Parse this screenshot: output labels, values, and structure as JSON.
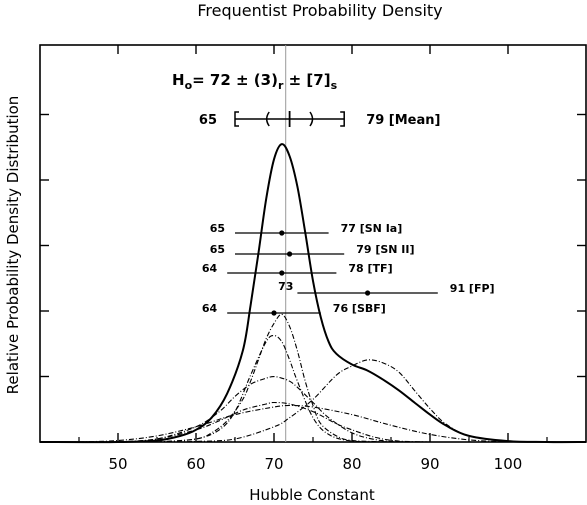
{
  "chart_data": {
    "type": "line",
    "title": "Frequentist Probability Density",
    "xlabel": "Hubble Constant",
    "ylabel": "Relative Probability Density Distribution",
    "xlim": [
      40,
      110
    ],
    "ylim": [
      0,
      1.0
    ],
    "x_ticks": [
      50,
      60,
      70,
      80,
      90,
      100
    ],
    "y_ticks": [
      0.2,
      0.4,
      0.6,
      0.8,
      1.0
    ],
    "reference_line_x": 71.5,
    "combined_result": {
      "text_parts": [
        "H",
        "o",
        "= 72 ± (3)",
        "r",
        " ± [7]",
        "s"
      ],
      "mean": {
        "center": 72,
        "stat_low": 69,
        "stat_high": 75,
        "low": 65,
        "high": 79,
        "low_label": "65",
        "high_label": "79 [Mean]"
      }
    },
    "measurements": [
      {
        "name": "SN Ia",
        "center": 71,
        "low": 65,
        "high": 77,
        "low_label": "65",
        "high_label": "77  [SN Ia]"
      },
      {
        "name": "SN II",
        "center": 72,
        "low": 65,
        "high": 79,
        "low_label": "65",
        "high_label": "79  [SN II]"
      },
      {
        "name": "TF",
        "center": 71,
        "low": 64,
        "high": 78,
        "low_label": "64",
        "high_label": "78  [TF]"
      },
      {
        "name": "FP",
        "center": 82,
        "low": 73,
        "high": 91,
        "low_label": "73",
        "high_label": "91  [FP]"
      },
      {
        "name": "SBF",
        "center": 70,
        "low": 64,
        "high": 76,
        "low_label": "64",
        "high_label": "76  [SBF]"
      }
    ],
    "series": [
      {
        "name": "",
        "style": "solid",
        "x": [
          40,
          50,
          55,
          58,
          60,
          62,
          64,
          66,
          67,
          68,
          69,
          70,
          71,
          72,
          73,
          74,
          75,
          76,
          77,
          78,
          80,
          82,
          84,
          86,
          88,
          90,
          92,
          95,
          100,
          105,
          110
        ],
        "y": [
          0.0,
          0.0,
          0.005,
          0.02,
          0.04,
          0.08,
          0.16,
          0.3,
          0.45,
          0.62,
          0.8,
          0.93,
          0.98,
          0.94,
          0.84,
          0.69,
          0.53,
          0.41,
          0.33,
          0.29,
          0.255,
          0.235,
          0.205,
          0.17,
          0.13,
          0.09,
          0.055,
          0.02,
          0.003,
          0.0,
          0.0
        ]
      },
      {
        "name": "",
        "style": "dashed",
        "x": [
          55,
          60,
          62,
          64,
          66,
          67,
          68,
          69,
          70,
          71,
          72,
          73,
          74,
          75,
          76,
          78,
          80,
          85
        ],
        "y": [
          0.0,
          0.01,
          0.03,
          0.07,
          0.14,
          0.2,
          0.27,
          0.34,
          0.39,
          0.42,
          0.38,
          0.3,
          0.2,
          0.12,
          0.06,
          0.02,
          0.005,
          0.0
        ]
      },
      {
        "name": "",
        "style": "dashed",
        "x": [
          55,
          60,
          63,
          65,
          67,
          69,
          70,
          71,
          72,
          73,
          75,
          77,
          80,
          85
        ],
        "y": [
          0.0,
          0.01,
          0.04,
          0.1,
          0.22,
          0.33,
          0.35,
          0.33,
          0.27,
          0.2,
          0.08,
          0.025,
          0.003,
          0.0
        ]
      },
      {
        "name": "",
        "style": "dashed",
        "x": [
          50,
          55,
          60,
          63,
          65,
          67,
          69,
          70,
          71,
          72,
          73,
          75,
          77,
          80,
          83,
          86,
          90
        ],
        "y": [
          0.0,
          0.01,
          0.05,
          0.1,
          0.15,
          0.19,
          0.21,
          0.215,
          0.21,
          0.2,
          0.18,
          0.13,
          0.08,
          0.03,
          0.008,
          0.001,
          0.0
        ]
      },
      {
        "name": "",
        "style": "dashed",
        "x": [
          50,
          55,
          60,
          63,
          66,
          69,
          70,
          72,
          75,
          78,
          80,
          83,
          86,
          90
        ],
        "y": [
          0.0,
          0.01,
          0.04,
          0.07,
          0.105,
          0.125,
          0.13,
          0.125,
          0.1,
          0.06,
          0.04,
          0.015,
          0.003,
          0.0
        ]
      },
      {
        "name": "",
        "style": "dashed",
        "x": [
          55,
          60,
          65,
          70,
          72,
          75,
          78,
          80,
          82,
          84,
          86,
          88,
          90,
          92,
          95,
          100
        ],
        "y": [
          0.0,
          0.002,
          0.01,
          0.05,
          0.08,
          0.14,
          0.22,
          0.25,
          0.27,
          0.26,
          0.23,
          0.17,
          0.11,
          0.06,
          0.02,
          0.0
        ]
      },
      {
        "name": "",
        "style": "dashed",
        "x": [
          45,
          50,
          55,
          60,
          65,
          70,
          72,
          75,
          80,
          85,
          90,
          95,
          100
        ],
        "y": [
          0.0,
          0.005,
          0.02,
          0.05,
          0.09,
          0.115,
          0.12,
          0.115,
          0.09,
          0.055,
          0.025,
          0.007,
          0.0
        ]
      }
    ]
  }
}
